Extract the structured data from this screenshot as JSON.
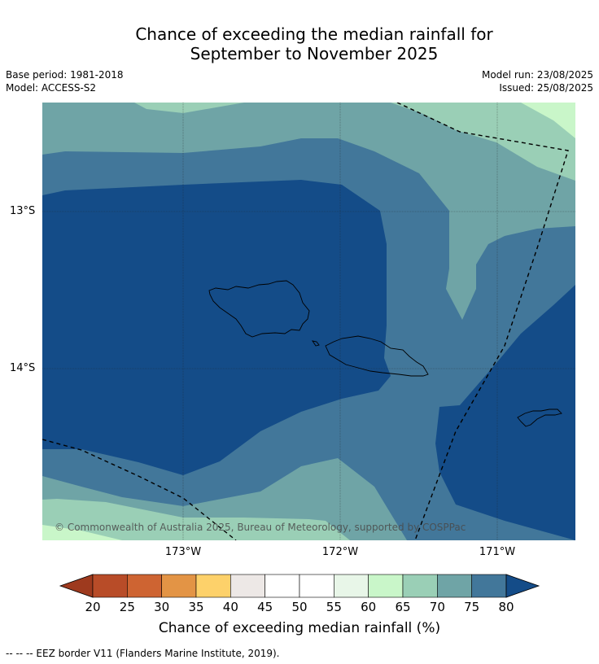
{
  "title": {
    "line1": "Chance of exceeding the median rainfall for",
    "line2": "September to November 2025"
  },
  "meta": {
    "base_period": "Base period: 1981-2018",
    "model": "Model: ACCESS-S2",
    "model_run": "Model run: 23/08/2025",
    "issued": "Issued: 25/08/2025"
  },
  "map": {
    "lat_labels": [
      "13°S",
      "14°S"
    ],
    "lon_labels": [
      "173°W",
      "172°W",
      "171°W"
    ],
    "copyright": "© Commonwealth of Australia 2025, Bureau of Meteorology, supported by COSPPac",
    "features": [
      "Samoa coastline (Savai'i, Upolu)",
      "American Samoa coastline (Tutuila)",
      "EEZ border dashed line"
    ]
  },
  "colorbar": {
    "ticks": [
      "20",
      "25",
      "30",
      "35",
      "40",
      "45",
      "50",
      "55",
      "60",
      "65",
      "70",
      "75",
      "80"
    ],
    "colors": [
      "#9e3a1e",
      "#b84c28",
      "#ce6432",
      "#e39445",
      "#fdd16a",
      "#ede8e6",
      "#ffffff",
      "#ffffff",
      "#e8f6e8",
      "#c9f6c9",
      "#9acfb6",
      "#6fa4a6",
      "#42779a",
      "#144c88",
      "#144c88"
    ],
    "label": "Chance of exceeding median rainfall (%)"
  },
  "colors": {
    "p80plus": "#144c88",
    "p75_80": "#42779a",
    "p70_75": "#6fa4a6",
    "p65_70": "#9acfb6",
    "p60_65": "#c9f6c9"
  },
  "footnote": "-- -- -- EEZ border V11 (Flanders Marine Institute, 2019)."
}
